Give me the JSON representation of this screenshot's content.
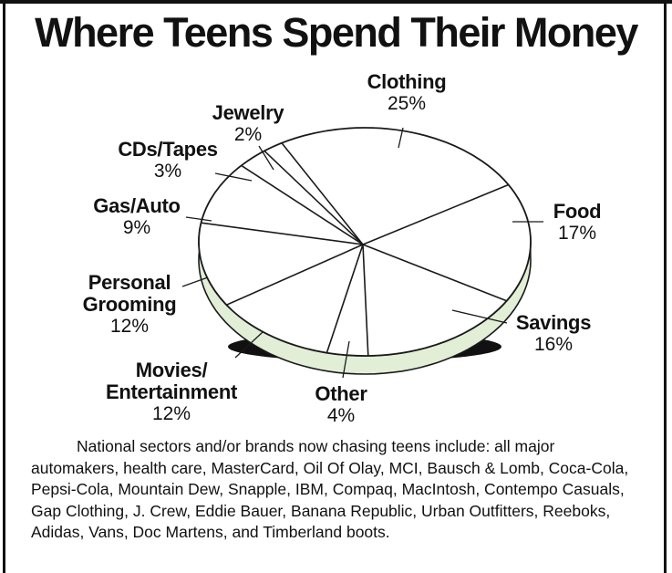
{
  "chart_data": {
    "type": "pie",
    "title": "Where Teens Spend Their Money",
    "categories": [
      "Clothing",
      "Food",
      "Savings",
      "Other",
      "Movies/ Entertainment",
      "Personal Grooming",
      "Gas/Auto",
      "CDs/Tapes",
      "Jewelry"
    ],
    "values": [
      25,
      17,
      16,
      4,
      12,
      12,
      9,
      3,
      2
    ],
    "labels": [
      {
        "name": "Clothing",
        "pct": "25%"
      },
      {
        "name": "Food",
        "pct": "17%"
      },
      {
        "name": "Savings",
        "pct": "16%"
      },
      {
        "name": "Other",
        "pct": "4%"
      },
      {
        "name": "Movies/",
        "name2": "Entertainment",
        "pct": "12%"
      },
      {
        "name": "Personal",
        "name2": "Grooming",
        "pct": "12%"
      },
      {
        "name": "Gas/Auto",
        "pct": "9%"
      },
      {
        "name": "CDs/Tapes",
        "pct": "3%"
      },
      {
        "name": "Jewelry",
        "pct": "2%"
      }
    ],
    "colors": {
      "slice_fill": "#ffffff",
      "edge_fill": "#e2eed6",
      "stroke": "#1a1a1a",
      "shadow": "#111111"
    }
  },
  "caption": "National sectors and/or brands now chasing teens include: all major automakers, health care, MasterCard, Oil Of Olay, MCI, Bausch & Lomb, Coca-Cola, Pepsi-Cola, Mountain Dew, Snapple, IBM, Compaq, MacIntosh, Contempo Casuals, Gap Clothing, J. Crew, Eddie Bauer, Banana Republic, Urban Outfitters, Reeboks, Adidas, Vans, Doc Martens, and Timberland boots."
}
